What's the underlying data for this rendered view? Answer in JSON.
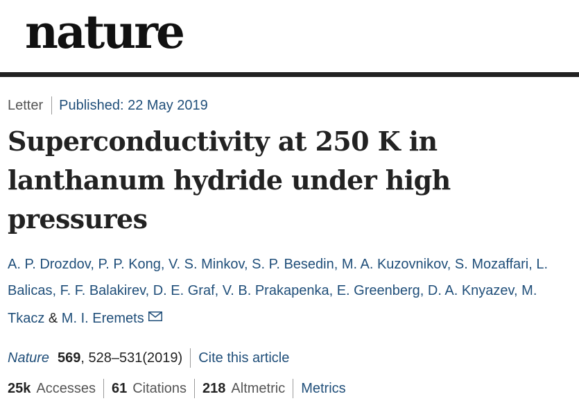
{
  "logo": "nature",
  "meta": {
    "type": "Letter",
    "published": "Published: 22 May 2019"
  },
  "title": "Superconductivity at 250 K in lanthanum hydride under high pressures",
  "authors": [
    "A. P. Drozdov",
    "P. P. Kong",
    "V. S. Minkov",
    "S. P. Besedin",
    "M. A. Kuzovnikov",
    "S. Mozaffari",
    "L. Balicas",
    "F. F. Balakirev",
    "D. E. Graf",
    "V. B. Prakapenka",
    "E. Greenberg",
    "D. A. Knyazev",
    "M. Tkacz",
    "M. I. Eremets"
  ],
  "authors_sep": ", ",
  "authors_last_sep": " & ",
  "citation": {
    "journal": "Nature",
    "volume": "569",
    "pages": ", 528–531(2019)",
    "cite_link": "Cite this article"
  },
  "metrics": {
    "accesses_num": "25k",
    "accesses_label": "Accesses",
    "citations_num": "61",
    "citations_label": "Citations",
    "altmetric_num": "218",
    "altmetric_label": "Altmetric",
    "metrics_link": "Metrics"
  },
  "icons": {
    "corresponding_author": "mail-icon"
  },
  "colors": {
    "link": "#1f4e79",
    "text": "#222222",
    "rule": "#222222"
  }
}
